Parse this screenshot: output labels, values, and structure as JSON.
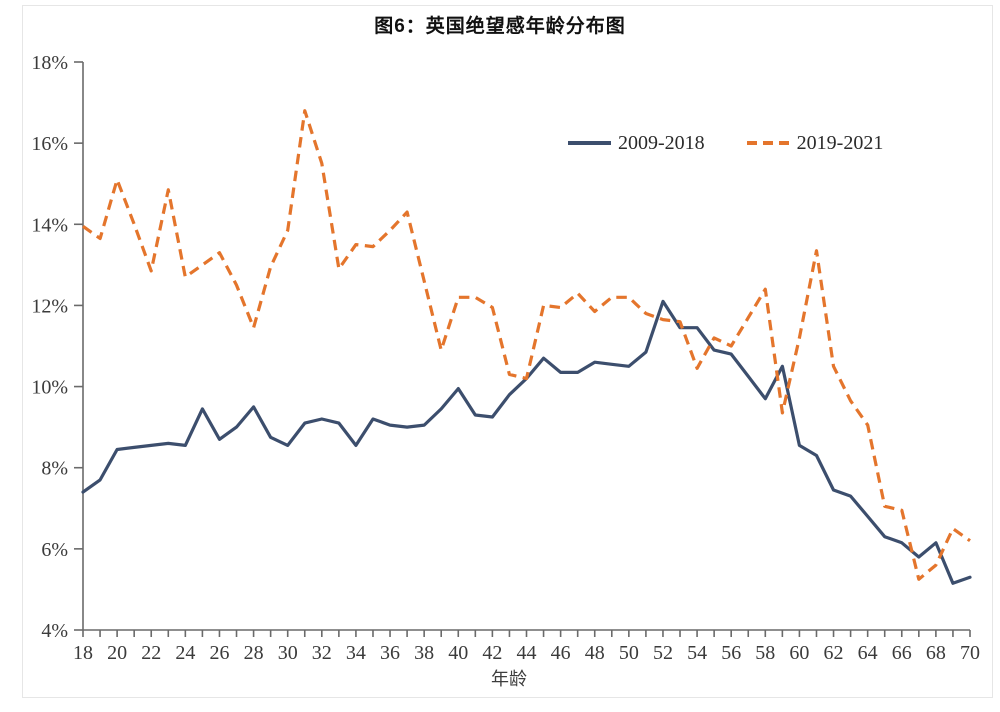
{
  "title": "图6：英国绝望感年龄分布图",
  "colors": {
    "series_2009_2018": "#3c4e6d",
    "series_2019_2021": "#e4752c",
    "axis": "#6a6a6a",
    "tick_text": "#3b3b3b",
    "title_text": "#111111"
  },
  "legend": [
    {
      "label": "2009-2018",
      "style": "solid"
    },
    {
      "label": "2019-2021",
      "style": "dashed"
    }
  ],
  "chart_data": {
    "type": "line",
    "title": "图6：英国绝望感年龄分布图",
    "xlabel": "年龄",
    "ylabel": "",
    "x_range": [
      18,
      70
    ],
    "x_step": 1,
    "ylim": [
      4,
      18
    ],
    "ytick_step": 2,
    "grid": false,
    "legend_position": "top-center-inside",
    "yticks": [
      "4%",
      "6%",
      "8%",
      "10%",
      "12%",
      "14%",
      "16%",
      "18%"
    ],
    "xticks": [
      18,
      20,
      22,
      24,
      26,
      28,
      30,
      32,
      34,
      36,
      38,
      40,
      42,
      44,
      46,
      48,
      50,
      52,
      54,
      56,
      58,
      60,
      62,
      64,
      66,
      68,
      70
    ],
    "series": [
      {
        "name": "2009-2018",
        "style": "solid",
        "color": "#3c4e6d",
        "unit": "%",
        "values": [
          7.4,
          7.7,
          8.45,
          8.5,
          8.55,
          8.6,
          8.55,
          9.45,
          8.7,
          9.0,
          9.5,
          8.75,
          8.55,
          9.1,
          9.2,
          9.1,
          8.55,
          9.2,
          9.05,
          9.0,
          9.05,
          9.45,
          9.95,
          9.3,
          9.25,
          9.8,
          10.2,
          10.7,
          10.35,
          10.35,
          10.6,
          10.55,
          10.5,
          10.85,
          12.1,
          11.45,
          11.45,
          10.9,
          10.8,
          10.25,
          9.7,
          10.5,
          8.55,
          8.3,
          7.45,
          7.3,
          6.8,
          6.3,
          6.15,
          5.8,
          6.15,
          5.15,
          5.3
        ]
      },
      {
        "name": "2019-2021",
        "style": "dashed",
        "color": "#e4752c",
        "unit": "%",
        "values": [
          13.95,
          13.65,
          15.1,
          14.0,
          12.85,
          14.85,
          12.7,
          13.0,
          13.3,
          12.5,
          11.45,
          12.95,
          13.85,
          16.8,
          15.5,
          12.9,
          13.5,
          13.45,
          13.85,
          14.3,
          12.6,
          10.9,
          12.2,
          12.2,
          11.95,
          10.3,
          10.2,
          12.0,
          11.95,
          12.3,
          11.85,
          12.2,
          12.2,
          11.8,
          11.65,
          11.6,
          10.45,
          11.2,
          11.0,
          11.7,
          12.4,
          9.35,
          11.2,
          13.35,
          10.5,
          9.65,
          9.05,
          7.05,
          6.95,
          5.25,
          5.6,
          6.5,
          6.2
        ]
      }
    ]
  }
}
